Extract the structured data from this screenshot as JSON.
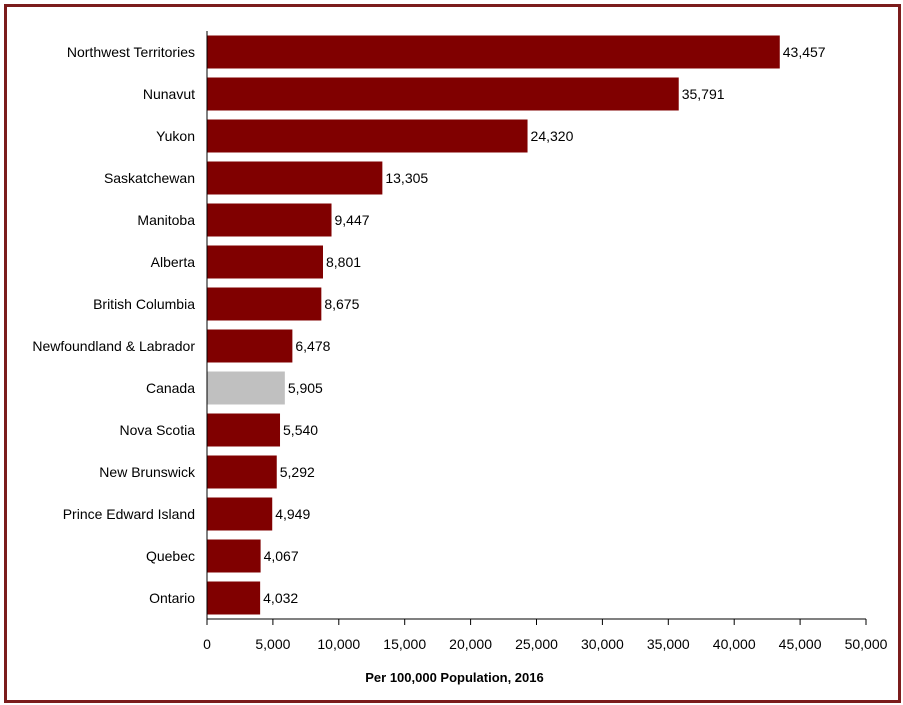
{
  "chart_data": {
    "type": "bar",
    "orientation": "horizontal",
    "title": "",
    "xlabel": "Per 100,000 Population, 2016",
    "ylabel": "",
    "xlim": [
      0,
      50000
    ],
    "x_ticks": [
      0,
      5000,
      10000,
      15000,
      20000,
      25000,
      30000,
      35000,
      40000,
      45000,
      50000
    ],
    "x_tick_labels": [
      "0",
      "5,000",
      "10,000",
      "15,000",
      "20,000",
      "25,000",
      "30,000",
      "35,000",
      "40,000",
      "45,000",
      "50,000"
    ],
    "grid": false,
    "legend": "none",
    "categories": [
      "Northwest Territories",
      "Nunavut",
      "Yukon",
      "Saskatchewan",
      "Manitoba",
      "Alberta",
      "British Columbia",
      "Newfoundland & Labrador",
      "Canada",
      "Nova Scotia",
      "New Brunswick",
      "Prince Edward Island",
      "Quebec",
      "Ontario"
    ],
    "values": [
      43457,
      35791,
      24320,
      13305,
      9447,
      8801,
      8675,
      6478,
      5905,
      5540,
      5292,
      4949,
      4067,
      4032
    ],
    "value_labels": [
      "43,457",
      "35,791",
      "24,320",
      "13,305",
      "9,447",
      "8,801",
      "8,675",
      "6,478",
      "5,905",
      "5,540",
      "5,292",
      "4,949",
      "4,067",
      "4,032"
    ],
    "colors": {
      "bar": "#800000",
      "highlight_bar": "#c0c0c0",
      "frame": "#7b1c1c",
      "axis": "#000000"
    },
    "highlight_category": "Canada"
  }
}
